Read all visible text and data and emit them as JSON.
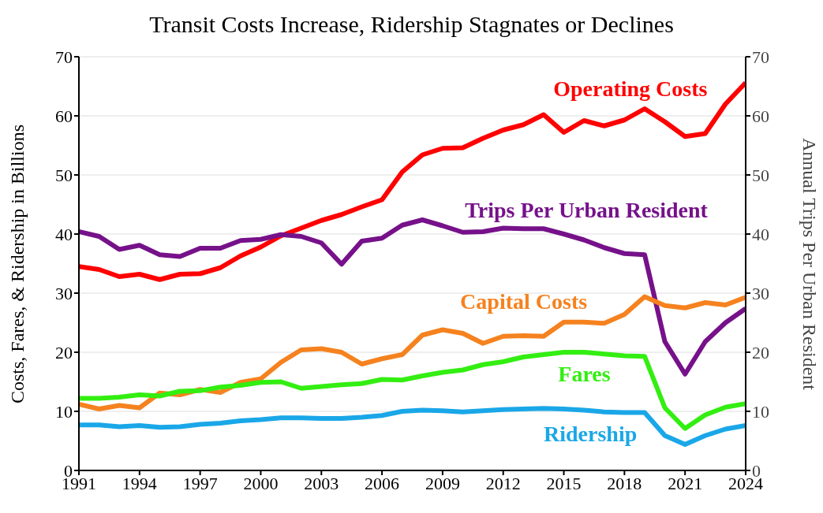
{
  "chart_data": {
    "type": "line",
    "title": "Transit Costs Increase, Ridership Stagnates or Declines",
    "ylabel": "Costs, Fares, & Ridership in Billions",
    "y2label": "Annual Trips Per Urban Resident",
    "x": [
      1991,
      1992,
      1993,
      1994,
      1995,
      1996,
      1997,
      1998,
      1999,
      2000,
      2001,
      2002,
      2003,
      2004,
      2005,
      2006,
      2007,
      2008,
      2009,
      2010,
      2011,
      2012,
      2013,
      2014,
      2015,
      2016,
      2017,
      2018,
      2019,
      2020,
      2021,
      2022,
      2023,
      2024
    ],
    "xlim": [
      1991,
      2024
    ],
    "xticks": [
      1991,
      1994,
      1997,
      2000,
      2003,
      2006,
      2009,
      2012,
      2015,
      2018,
      2021,
      2024
    ],
    "ylim": [
      0,
      70
    ],
    "yticks": [
      0,
      10,
      20,
      30,
      40,
      50,
      60,
      70
    ],
    "y2lim": [
      0,
      70
    ],
    "y2ticks": [
      0,
      10,
      20,
      30,
      40,
      50,
      60,
      70
    ],
    "grid": "y",
    "marker": "none",
    "line_style": "solid",
    "series": [
      {
        "name": "Operating Costs",
        "color": "#ff0000",
        "values": [
          34.5,
          34.0,
          32.8,
          33.2,
          32.3,
          33.2,
          33.3,
          34.3,
          36.3,
          37.8,
          39.7,
          41.0,
          42.3,
          43.3,
          44.6,
          45.8,
          50.5,
          53.4,
          54.5,
          54.6,
          56.2,
          57.6,
          58.5,
          60.2,
          57.2,
          59.2,
          58.3,
          59.3,
          61.2,
          59.0,
          56.5,
          57.0,
          62.0,
          65.6
        ]
      },
      {
        "name": "Trips Per Urban Resident",
        "color": "#76118a",
        "axis": "y2",
        "values": [
          40.4,
          39.6,
          37.4,
          38.1,
          36.5,
          36.2,
          37.6,
          37.6,
          38.9,
          39.1,
          39.9,
          39.6,
          38.5,
          34.9,
          38.8,
          39.3,
          41.5,
          42.4,
          41.4,
          40.3,
          40.4,
          41.0,
          40.9,
          40.9,
          40.0,
          39.0,
          37.7,
          36.7,
          36.5,
          21.8,
          16.3,
          21.8,
          25.0,
          27.4
        ]
      },
      {
        "name": "Capital Costs",
        "color": "#f5821f",
        "values": [
          11.2,
          10.4,
          11.0,
          10.6,
          13.1,
          12.8,
          13.7,
          13.2,
          14.9,
          15.5,
          18.3,
          20.4,
          20.6,
          20.0,
          18.0,
          18.9,
          19.6,
          22.9,
          23.8,
          23.2,
          21.5,
          22.7,
          22.8,
          22.7,
          25.1,
          25.1,
          24.9,
          26.4,
          29.4,
          27.9,
          27.5,
          28.4,
          28.0,
          29.3
        ]
      },
      {
        "name": "Fares",
        "color": "#33ee11",
        "values": [
          12.2,
          12.2,
          12.4,
          12.8,
          12.6,
          13.4,
          13.5,
          14.1,
          14.4,
          14.9,
          15.0,
          13.9,
          14.2,
          14.5,
          14.7,
          15.4,
          15.3,
          16.0,
          16.6,
          17.0,
          17.9,
          18.4,
          19.2,
          19.6,
          20.0,
          20.0,
          19.7,
          19.4,
          19.3,
          10.6,
          7.1,
          9.4,
          10.7,
          11.3
        ]
      },
      {
        "name": "Ridership",
        "color": "#1aa7e8",
        "values": [
          7.7,
          7.7,
          7.4,
          7.6,
          7.3,
          7.4,
          7.8,
          8.0,
          8.4,
          8.6,
          8.9,
          8.9,
          8.8,
          8.8,
          9.0,
          9.3,
          10.0,
          10.2,
          10.1,
          9.9,
          10.1,
          10.3,
          10.4,
          10.5,
          10.4,
          10.2,
          9.9,
          9.8,
          9.8,
          5.9,
          4.4,
          5.9,
          7.0,
          7.6
        ]
      }
    ]
  }
}
